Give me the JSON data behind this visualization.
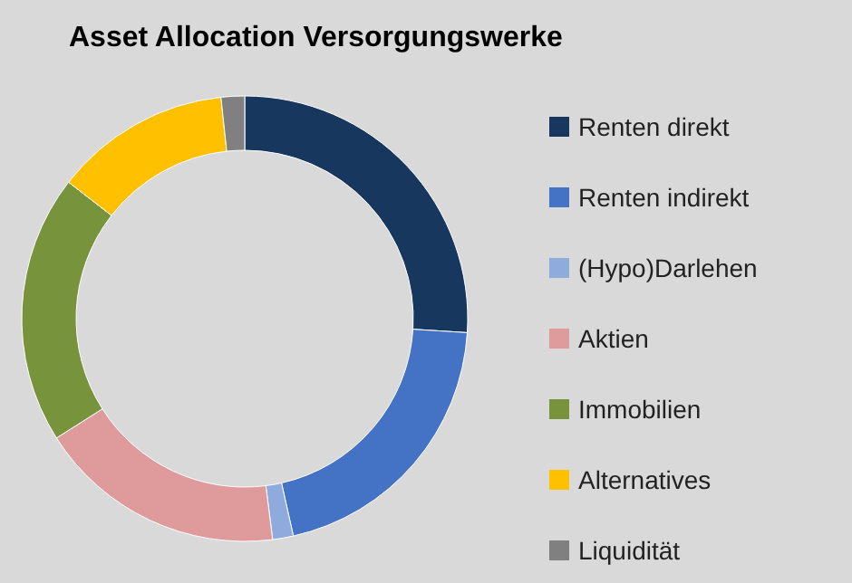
{
  "chart_data": {
    "type": "donut",
    "title": "Asset Allocation Versorgungswerke",
    "categories": [
      "Renten direkt",
      "Renten indirekt",
      "(Hypo)Darlehen",
      "Aktien",
      "Immobilien",
      "Alternatives",
      "Liquidität"
    ],
    "values": [
      26,
      20.5,
      1.5,
      18,
      19.5,
      12.8,
      1.7
    ],
    "colors": [
      "#17375e",
      "#4472c4",
      "#8faadc",
      "#df9a9b",
      "#77933c",
      "#ffc000",
      "#808080"
    ],
    "legend": "right"
  }
}
